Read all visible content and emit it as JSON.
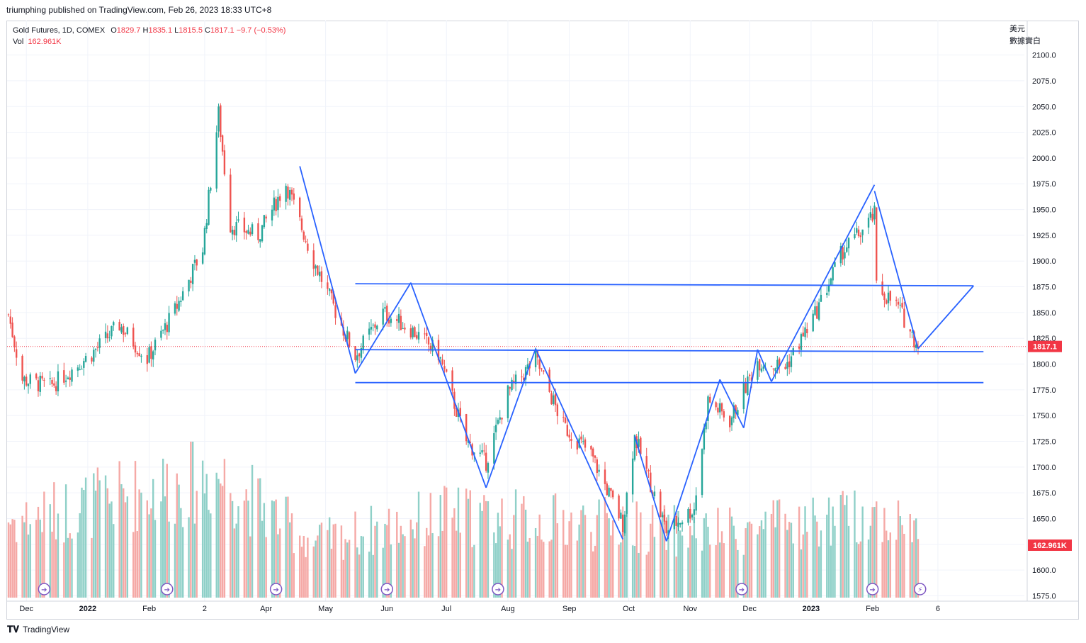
{
  "header": {
    "published": "triumphing published on TradingView.com, Feb 26, 2023 18:33 UTC+8"
  },
  "legend": {
    "symbol": "Gold Futures, 1D, COMEX",
    "o_label": "O",
    "o": "1829.7",
    "h_label": "H",
    "h": "1835.1",
    "l_label": "L",
    "l": "1815.5",
    "c_label": "C",
    "c": "1817.1",
    "change": "−9.7 (−0.53%)",
    "vol_label": "Vol",
    "vol": "162.961K"
  },
  "currency": {
    "line1": "美元",
    "line2": "數據實白"
  },
  "footer": {
    "brand": "TradingView"
  },
  "colors": {
    "up": "#26a69a",
    "down": "#ef5350",
    "vol_up": "#8fd0c8",
    "vol_down": "#f5a9a6",
    "drawing": "#2962ff",
    "price_label_bg": "#f23645",
    "event_icon": "#7e57c2"
  },
  "chart_data": {
    "type": "candlestick",
    "symbol": "Gold Futures",
    "interval": "1D",
    "exchange": "COMEX",
    "ylim": [
      1575,
      2100
    ],
    "y_ticks": [
      "2100.0",
      "2075.0",
      "2050.0",
      "2025.0",
      "2000.0",
      "1975.0",
      "1950.0",
      "1925.0",
      "1900.0",
      "1875.0",
      "1850.0",
      "1825.0",
      "1800.0",
      "1775.0",
      "1750.0",
      "1725.0",
      "1700.0",
      "1675.0",
      "1650.0",
      "1625.0",
      "1600.0",
      "1575.0"
    ],
    "x_labels": [
      "Dec",
      "2022",
      "Feb",
      "2",
      "Apr",
      "May",
      "Jun",
      "Jul",
      "Aug",
      "Sep",
      "Oct",
      "Nov",
      "Dec",
      "2023",
      "Feb",
      "6"
    ],
    "bold_x_labels": [
      "2022",
      "2023"
    ],
    "last_price": 1817.1,
    "last_price_label": "1817.1",
    "volume_label": "162.961K",
    "approx_close_path": [
      {
        "d": "2021-11-22",
        "v": 1848
      },
      {
        "d": "2021-11-29",
        "v": 1785
      },
      {
        "d": "2021-12-13",
        "v": 1778
      },
      {
        "d": "2022-01-03",
        "v": 1810
      },
      {
        "d": "2022-01-17",
        "v": 1838
      },
      {
        "d": "2022-01-31",
        "v": 1805
      },
      {
        "d": "2022-02-14",
        "v": 1852
      },
      {
        "d": "2022-02-28",
        "v": 1912
      },
      {
        "d": "2022-03-08",
        "v": 2043
      },
      {
        "d": "2022-03-14",
        "v": 1935
      },
      {
        "d": "2022-03-28",
        "v": 1925
      },
      {
        "d": "2022-04-11",
        "v": 1975
      },
      {
        "d": "2022-04-25",
        "v": 1900
      },
      {
        "d": "2022-05-09",
        "v": 1838
      },
      {
        "d": "2022-05-16",
        "v": 1808
      },
      {
        "d": "2022-05-30",
        "v": 1850
      },
      {
        "d": "2022-06-13",
        "v": 1834
      },
      {
        "d": "2022-06-27",
        "v": 1810
      },
      {
        "d": "2022-07-11",
        "v": 1725
      },
      {
        "d": "2022-07-21",
        "v": 1705
      },
      {
        "d": "2022-08-01",
        "v": 1772
      },
      {
        "d": "2022-08-15",
        "v": 1805
      },
      {
        "d": "2022-08-29",
        "v": 1740
      },
      {
        "d": "2022-09-12",
        "v": 1712
      },
      {
        "d": "2022-09-28",
        "v": 1645
      },
      {
        "d": "2022-10-04",
        "v": 1730
      },
      {
        "d": "2022-10-20",
        "v": 1638
      },
      {
        "d": "2022-11-03",
        "v": 1660
      },
      {
        "d": "2022-11-10",
        "v": 1765
      },
      {
        "d": "2022-11-21",
        "v": 1745
      },
      {
        "d": "2022-12-05",
        "v": 1803
      },
      {
        "d": "2022-12-19",
        "v": 1797
      },
      {
        "d": "2023-01-03",
        "v": 1848
      },
      {
        "d": "2023-01-17",
        "v": 1910
      },
      {
        "d": "2023-01-27",
        "v": 1930
      },
      {
        "d": "2023-02-02",
        "v": 1945
      },
      {
        "d": "2023-02-03",
        "v": 1875
      },
      {
        "d": "2023-02-14",
        "v": 1855
      },
      {
        "d": "2023-02-24",
        "v": 1817
      }
    ],
    "approx_volume_k": [
      {
        "d": "2021-12-01",
        "v": 185
      },
      {
        "d": "2022-03-07",
        "v": 290
      },
      {
        "d": "2022-04-25",
        "v": 130
      },
      {
        "d": "2022-07-01",
        "v": 195
      },
      {
        "d": "2022-09-28",
        "v": 170
      },
      {
        "d": "2022-11-10",
        "v": 150
      },
      {
        "d": "2023-02-03",
        "v": 195
      },
      {
        "d": "2023-02-24",
        "v": 163
      }
    ],
    "trendlines": [
      {
        "from": {
          "d": "2022-04-18",
          "v": 1992
        },
        "to": {
          "d": "2022-05-16",
          "v": 1791
        }
      },
      {
        "from": {
          "d": "2022-05-16",
          "v": 1791
        },
        "to": {
          "d": "2022-06-13",
          "v": 1879
        }
      },
      {
        "from": {
          "d": "2022-06-13",
          "v": 1879
        },
        "to": {
          "d": "2022-07-21",
          "v": 1680
        }
      },
      {
        "from": {
          "d": "2022-07-21",
          "v": 1680
        },
        "to": {
          "d": "2022-08-15",
          "v": 1815
        }
      },
      {
        "from": {
          "d": "2022-08-15",
          "v": 1815
        },
        "to": {
          "d": "2022-09-28",
          "v": 1630
        }
      },
      {
        "from": {
          "d": "2022-10-04",
          "v": 1730
        },
        "to": {
          "d": "2022-10-20",
          "v": 1628
        }
      },
      {
        "from": {
          "d": "2022-10-20",
          "v": 1628
        },
        "to": {
          "d": "2022-11-16",
          "v": 1785
        }
      },
      {
        "from": {
          "d": "2022-11-16",
          "v": 1785
        },
        "to": {
          "d": "2022-11-28",
          "v": 1738
        }
      },
      {
        "from": {
          "d": "2022-11-28",
          "v": 1738
        },
        "to": {
          "d": "2022-12-05",
          "v": 1814
        }
      },
      {
        "from": {
          "d": "2022-12-05",
          "v": 1814
        },
        "to": {
          "d": "2022-12-12",
          "v": 1783
        }
      },
      {
        "from": {
          "d": "2022-12-12",
          "v": 1783
        },
        "to": {
          "d": "2023-02-02",
          "v": 1974
        }
      },
      {
        "from": {
          "d": "2023-02-02",
          "v": 1968
        },
        "to": {
          "d": "2023-02-24",
          "v": 1815
        }
      },
      {
        "from": {
          "d": "2023-02-24",
          "v": 1815
        },
        "to": {
          "d": "2023-03-24",
          "v": 1876
        }
      }
    ],
    "horizontal_lines": [
      {
        "from": {
          "d": "2022-05-16",
          "v": 1878
        },
        "to": {
          "d": "2023-03-24",
          "v": 1876
        }
      },
      {
        "from": {
          "d": "2022-05-16",
          "v": 1814
        },
        "to": {
          "d": "2023-03-29",
          "v": 1812
        }
      },
      {
        "from": {
          "d": "2022-05-16",
          "v": 1782
        },
        "to": {
          "d": "2023-03-29",
          "v": 1782
        }
      }
    ]
  }
}
